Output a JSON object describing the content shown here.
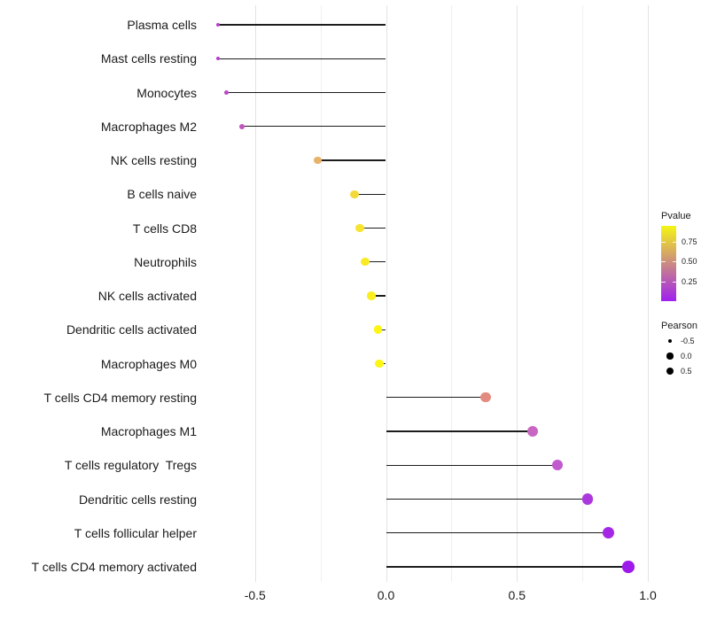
{
  "chart_data": {
    "type": "bar",
    "variant": "horizontal-lollipop",
    "title": "",
    "xlabel": "",
    "ylabel": "",
    "xlim": [
      -0.72,
      1.1
    ],
    "grid": "vertical-only",
    "legend_position": "right",
    "x_major_ticks": [
      {
        "value": -0.5,
        "label": "-0.5"
      },
      {
        "value": 0.0,
        "label": "0.0"
      },
      {
        "value": 0.5,
        "label": "0.5"
      },
      {
        "value": 1.0,
        "label": "1.0"
      }
    ],
    "x_minor_ticks": [
      -0.25,
      0.25,
      0.75
    ],
    "categories": [
      "Plasma cells",
      "Mast cells resting",
      "Monocytes",
      "Macrophages M2",
      "NK cells resting",
      "B cells naive",
      "T cells CD8",
      "Neutrophils",
      "NK cells activated",
      "Dendritic cells activated",
      "Macrophages M0",
      "T cells CD4 memory resting",
      "Macrophages M1",
      "T cells regulatory  Tregs",
      "Dendritic cells resting",
      "T cells follicular helper",
      "T cells CD4 memory activated"
    ],
    "points": [
      {
        "label": "Plasma cells",
        "pearson": -0.64,
        "pvalue_est": 0.18,
        "dot_color": "#b542c6"
      },
      {
        "label": "Mast cells resting",
        "pearson": -0.64,
        "pvalue_est": 0.18,
        "dot_color": "#b340c7"
      },
      {
        "label": "Monocytes",
        "pearson": -0.61,
        "pvalue_est": 0.22,
        "dot_color": "#bb4bc4"
      },
      {
        "label": "Macrophages M2",
        "pearson": -0.55,
        "pvalue_est": 0.27,
        "dot_color": "#c254c0"
      },
      {
        "label": "NK cells resting",
        "pearson": -0.26,
        "pvalue_est": 0.65,
        "dot_color": "#e9b269"
      },
      {
        "label": "B cells naive",
        "pearson": -0.12,
        "pvalue_est": 0.8,
        "dot_color": "#f3da3a"
      },
      {
        "label": "T cells CD8",
        "pearson": -0.1,
        "pvalue_est": 0.84,
        "dot_color": "#f6e42e"
      },
      {
        "label": "Neutrophils",
        "pearson": -0.08,
        "pvalue_est": 0.87,
        "dot_color": "#f8ea24"
      },
      {
        "label": "NK cells activated",
        "pearson": -0.055,
        "pvalue_est": 0.9,
        "dot_color": "#faee1c"
      },
      {
        "label": "Dendritic cells activated",
        "pearson": -0.03,
        "pvalue_est": 0.93,
        "dot_color": "#fdf513"
      },
      {
        "label": "Macrophages M0",
        "pearson": -0.025,
        "pvalue_est": 0.93,
        "dot_color": "#fdf513"
      },
      {
        "label": "T cells CD4 memory resting",
        "pearson": 0.38,
        "pvalue_est": 0.52,
        "dot_color": "#e38b80"
      },
      {
        "label": "Macrophages M1",
        "pearson": 0.56,
        "pvalue_est": 0.32,
        "dot_color": "#c966c2"
      },
      {
        "label": "T cells regulatory  Tregs",
        "pearson": 0.655,
        "pvalue_est": 0.26,
        "dot_color": "#c05ace"
      },
      {
        "label": "Dendritic cells resting",
        "pearson": 0.77,
        "pvalue_est": 0.1,
        "dot_color": "#ab38dc"
      },
      {
        "label": "T cells follicular helper",
        "pearson": 0.85,
        "pvalue_est": 0.04,
        "dot_color": "#a527e6"
      },
      {
        "label": "T cells CD4 memory activated",
        "pearson": 0.925,
        "pvalue_est": 0.01,
        "dot_color": "#9e1aea"
      }
    ],
    "legend": {
      "pvalue": {
        "title": "Pvalue",
        "gradient_top_color": "#f5f514",
        "gradient_bottom_color": "#a020f0",
        "range": [
          0.005,
          0.95
        ],
        "ticks": [
          {
            "value": 0.75,
            "label": "0.75"
          },
          {
            "value": 0.5,
            "label": "0.50"
          },
          {
            "value": 0.25,
            "label": "0.25"
          }
        ]
      },
      "pearson": {
        "title": "Pearson",
        "dot_color": "#000000",
        "entries": [
          {
            "value": -0.5,
            "label": "-0.5"
          },
          {
            "value": 0.0,
            "label": "0.0"
          },
          {
            "value": 0.5,
            "label": "0.5"
          }
        ]
      }
    }
  }
}
